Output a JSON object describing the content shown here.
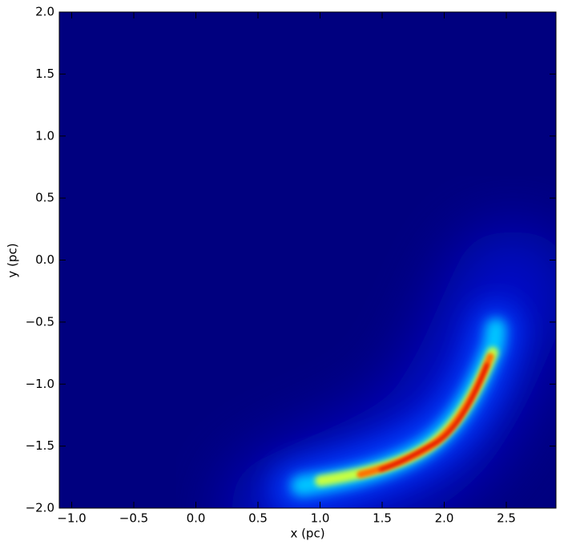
{
  "chart_data": {
    "type": "heatmap",
    "colormap": "jet",
    "xlabel": "x (pc)",
    "ylabel": "y (pc)",
    "xlim": [
      -1.1,
      2.9
    ],
    "ylim": [
      -2,
      2
    ],
    "xticks": [
      {
        "value": -1,
        "label": "−1.0"
      },
      {
        "value": -0.5,
        "label": "−0.5"
      },
      {
        "value": 0,
        "label": "0.0"
      },
      0.5,
      {
        "value": 1,
        "label": "1.0"
      },
      1.5,
      {
        "value": 2,
        "label": "2.0"
      },
      2.5
    ],
    "yticks": [
      {
        "value": -2,
        "label": "−2.0"
      },
      {
        "value": -1.5,
        "label": "−1.5"
      },
      {
        "value": -1,
        "label": "−1.0"
      },
      {
        "value": -0.5,
        "label": "−0.5"
      },
      {
        "value": 0,
        "label": "0.0"
      },
      0.5,
      {
        "value": 1,
        "label": "1.0"
      },
      1.5,
      {
        "value": 2,
        "label": "2.0"
      }
    ]
  }
}
